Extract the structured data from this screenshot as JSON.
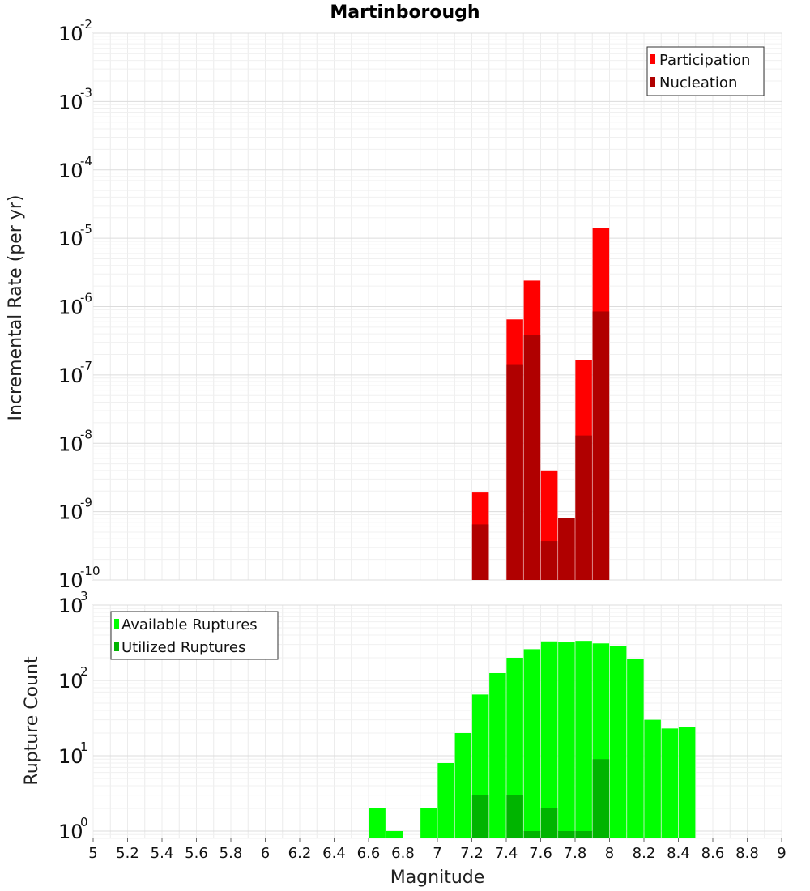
{
  "title": "Martinborough",
  "chart_data": [
    {
      "type": "bar",
      "ylabel": "Incremental Rate (per yr)",
      "yscale": "log",
      "ylim": [
        1e-10,
        0.01
      ],
      "xlim": [
        5,
        9
      ],
      "y_ticks": [
        {
          "base": "10",
          "exp": "-10",
          "value": 1e-10
        },
        {
          "base": "10",
          "exp": "-9",
          "value": 1e-09
        },
        {
          "base": "10",
          "exp": "-8",
          "value": 1e-08
        },
        {
          "base": "10",
          "exp": "-7",
          "value": 1e-07
        },
        {
          "base": "10",
          "exp": "-6",
          "value": 1e-06
        },
        {
          "base": "10",
          "exp": "-5",
          "value": 1e-05
        },
        {
          "base": "10",
          "exp": "-4",
          "value": 0.0001
        },
        {
          "base": "10",
          "exp": "-3",
          "value": 0.001
        },
        {
          "base": "10",
          "exp": "-2",
          "value": 0.01
        }
      ],
      "legend_position": "top-right",
      "grid": true,
      "series": [
        {
          "name": "Participation",
          "color": "#ff0000",
          "x": [
            7.25,
            7.45,
            7.55,
            7.65,
            7.75,
            7.85,
            7.95
          ],
          "values": [
            1.9e-09,
            6.5e-07,
            2.4e-06,
            4e-09,
            8e-10,
            1.65e-07,
            1.4e-05
          ]
        },
        {
          "name": "Nucleation",
          "color": "#b00000",
          "x": [
            7.25,
            7.45,
            7.55,
            7.65,
            7.75,
            7.85,
            7.95
          ],
          "values": [
            6.5e-10,
            1.4e-07,
            3.9e-07,
            3.7e-10,
            8e-10,
            1.3e-08,
            8.5e-07
          ]
        }
      ]
    },
    {
      "type": "bar",
      "ylabel": "Rupture Count",
      "xlabel": "Magnitude",
      "yscale": "log",
      "ylim": [
        0.8,
        1000
      ],
      "xlim": [
        5,
        9
      ],
      "x_ticks": [
        "5",
        "5.2",
        "5.4",
        "5.6",
        "5.8",
        "6",
        "6.2",
        "6.4",
        "6.6",
        "6.8",
        "7",
        "7.2",
        "7.4",
        "7.6",
        "7.8",
        "8",
        "8.2",
        "8.4",
        "8.6",
        "8.8",
        "9"
      ],
      "y_ticks": [
        {
          "base": "10",
          "exp": "0",
          "value": 1
        },
        {
          "base": "10",
          "exp": "1",
          "value": 10
        },
        {
          "base": "10",
          "exp": "2",
          "value": 100
        },
        {
          "base": "10",
          "exp": "3",
          "value": 1000
        }
      ],
      "legend_position": "top-left",
      "grid": true,
      "series": [
        {
          "name": "Available Ruptures",
          "color": "#00ff00",
          "x": [
            6.65,
            6.75,
            6.95,
            7.05,
            7.15,
            7.25,
            7.35,
            7.45,
            7.55,
            7.65,
            7.75,
            7.85,
            7.95,
            8.05,
            8.15,
            8.25,
            8.35,
            8.45
          ],
          "values": [
            2,
            1,
            2,
            8,
            20,
            65,
            125,
            200,
            260,
            330,
            320,
            335,
            310,
            285,
            195,
            30,
            23,
            24
          ]
        },
        {
          "name": "Utilized Ruptures",
          "color": "#00b400",
          "x": [
            7.25,
            7.45,
            7.55,
            7.65,
            7.75,
            7.85,
            7.95
          ],
          "values": [
            3,
            3,
            1,
            2,
            1,
            1,
            9
          ]
        }
      ]
    }
  ]
}
